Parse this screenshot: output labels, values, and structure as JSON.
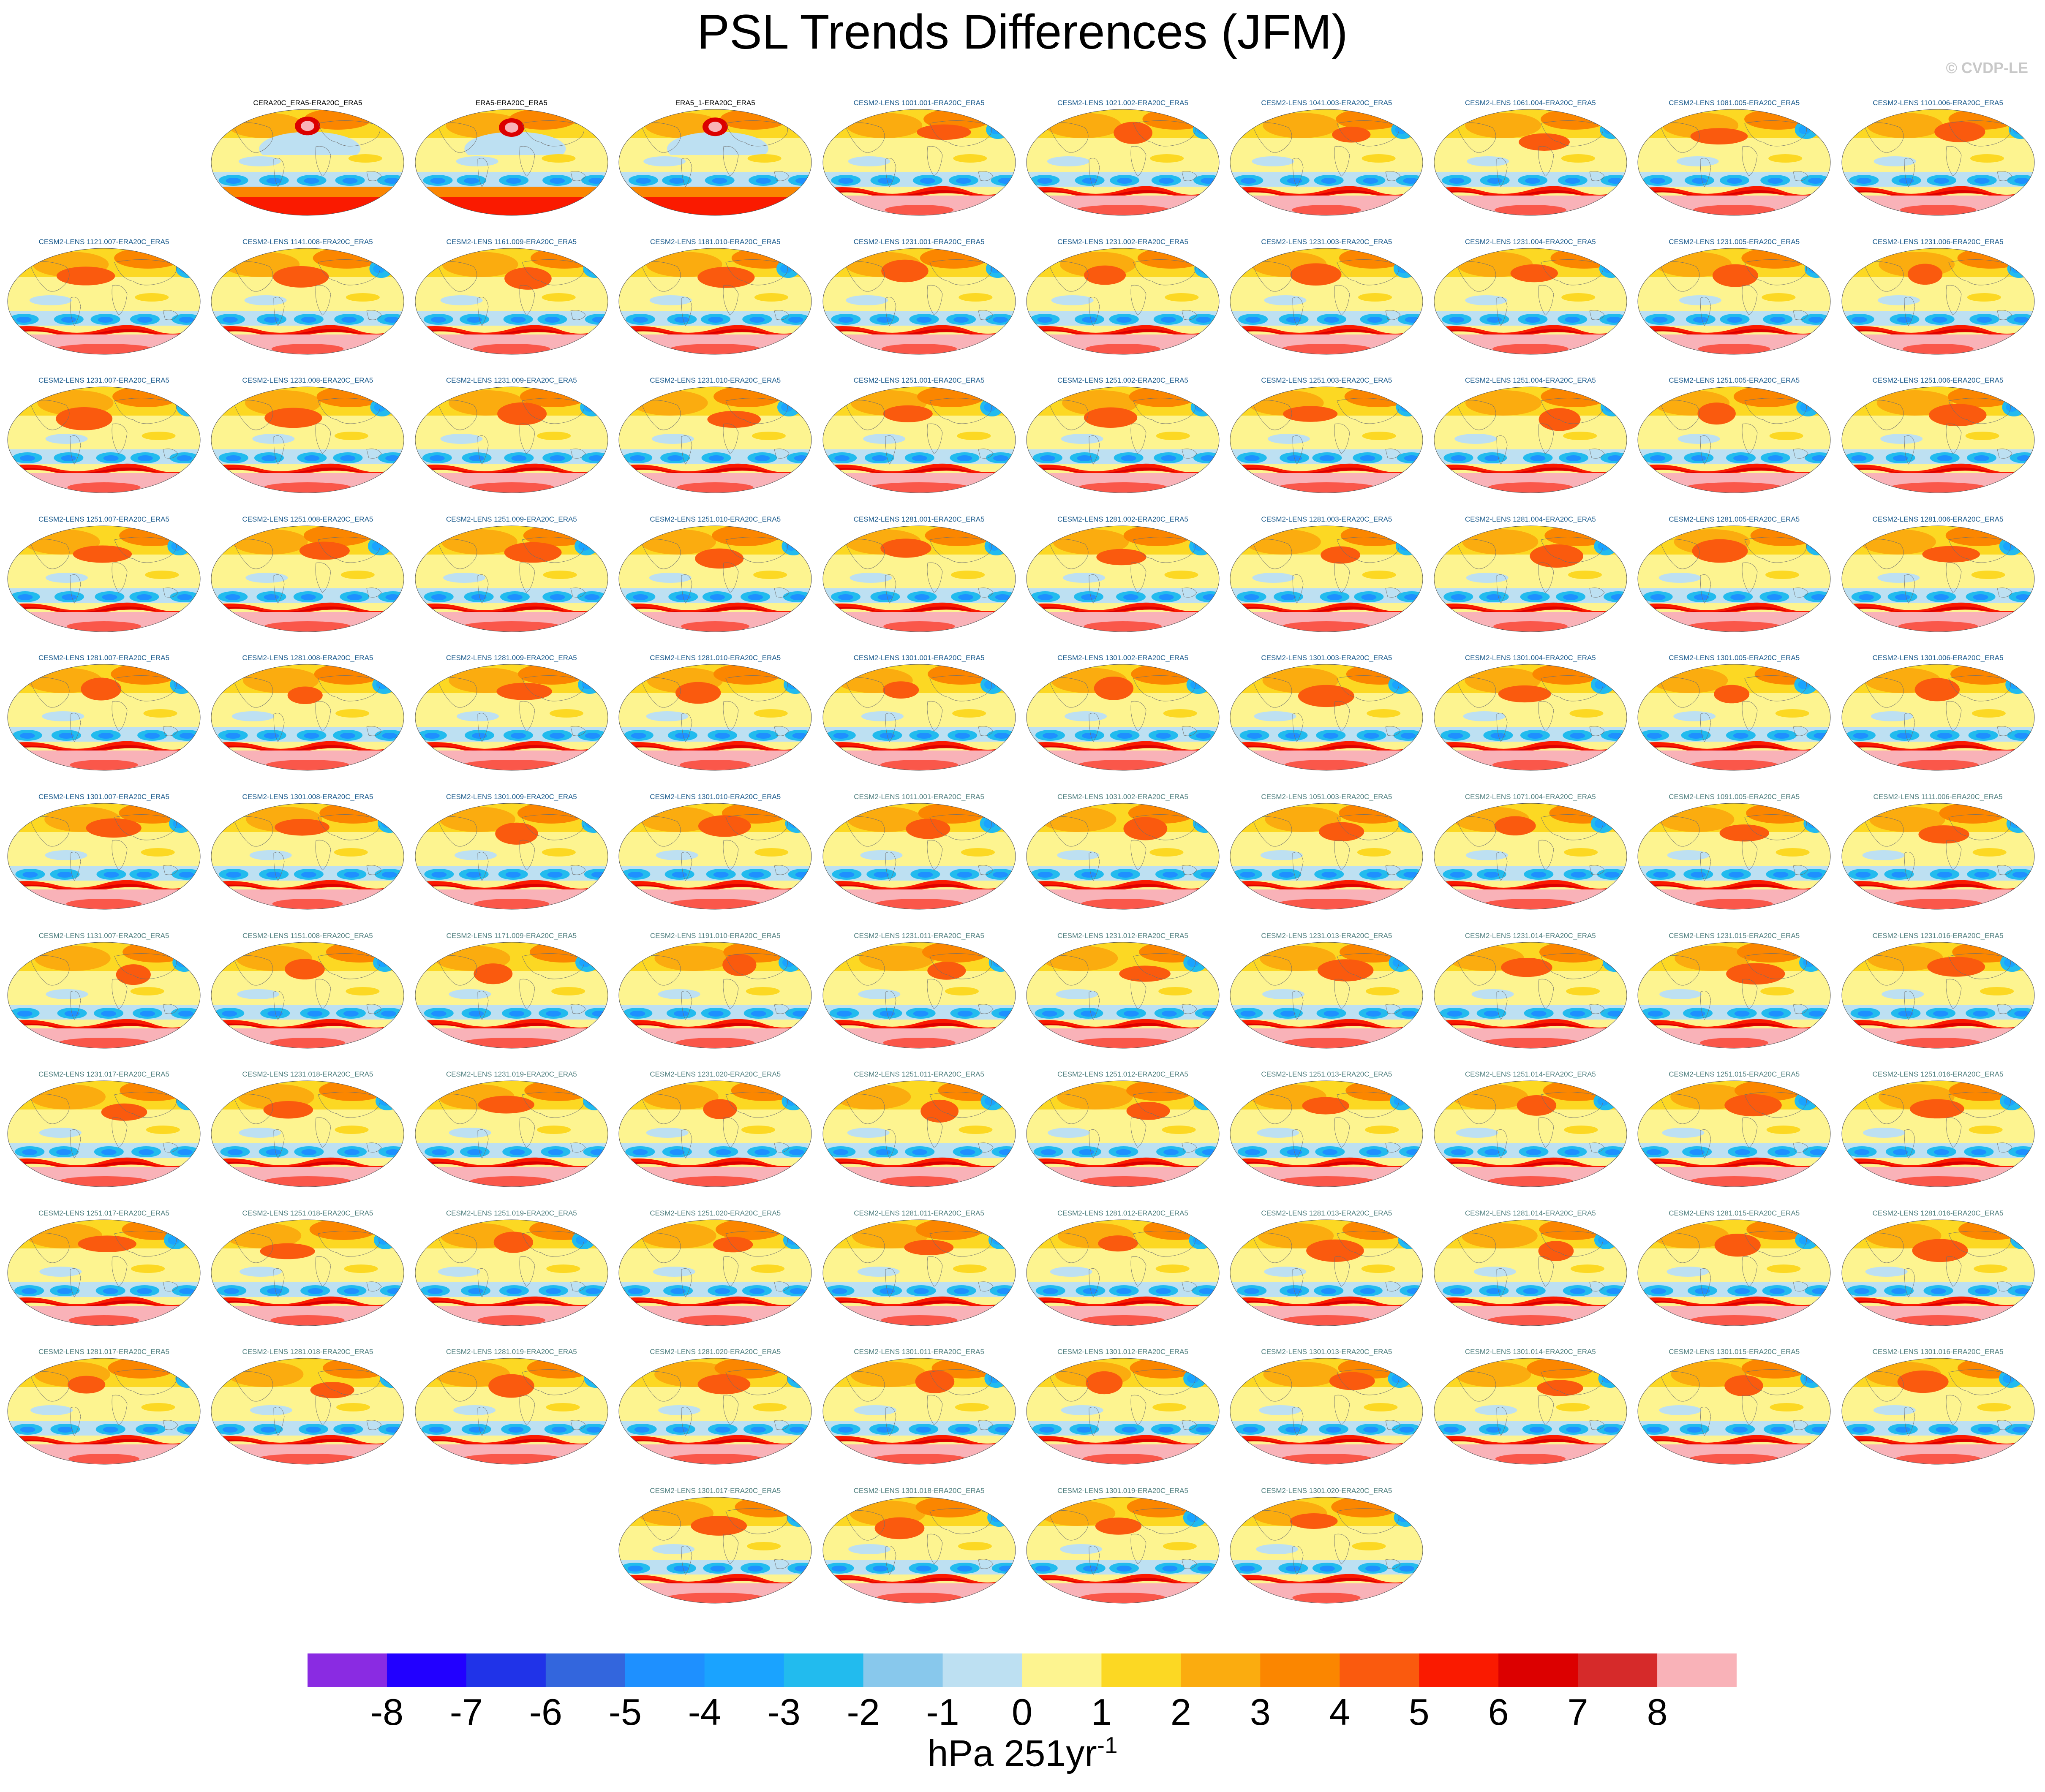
{
  "title": "PSL Trends Differences (JFM)",
  "copyright": "© CVDP-LE",
  "colors": {
    "label_obs": "#000000",
    "label_blue": "#1a5a8c",
    "label_teal": "#4d7d7d",
    "label_gray": "#5a7a7a"
  },
  "chart_data": {
    "type": "map-panel-grid",
    "projection": "Robinson",
    "variable": "PSL",
    "season": "JFM",
    "units": "hPa 251yr-1",
    "contour_levels": [
      -8,
      -7,
      -6,
      -5,
      -4,
      -3,
      -2,
      -1,
      0,
      1,
      2,
      3,
      4,
      5,
      6,
      7,
      8
    ],
    "colorbar_colors": [
      "#8a2be2",
      "#2200ff",
      "#2033e8",
      "#3366dd",
      "#1e90ff",
      "#1aa3ff",
      "#22bbee",
      "#88c8ec",
      "#bde0f2",
      "#fdf490",
      "#fcd823",
      "#fbac0f",
      "#fb8600",
      "#fa5a0e",
      "#fa1a00",
      "#dc0000",
      "#d62a2a",
      "#f9b2b8"
    ],
    "colorbar_labels": [
      "-8",
      "-7",
      "-6",
      "-5",
      "-4",
      "-3",
      "-2",
      "-1",
      "0",
      "1",
      "2",
      "3",
      "4",
      "5",
      "6",
      "7",
      "8"
    ],
    "units_label": {
      "base": "hPa 251yr",
      "exp": "-1"
    },
    "rows": [
      [
        {
          "label": "CERA20C_ERA5-ERA20C_ERA5",
          "group": "obs"
        },
        {
          "label": "ERA5-ERA20C_ERA5",
          "group": "obs"
        },
        {
          "label": "ERA5_1-ERA20C_ERA5",
          "group": "obs"
        },
        {
          "label": "CESM2-LENS 1001.001-ERA20C_ERA5",
          "group": "blue"
        },
        {
          "label": "CESM2-LENS 1021.002-ERA20C_ERA5",
          "group": "blue"
        },
        {
          "label": "CESM2-LENS 1041.003-ERA20C_ERA5",
          "group": "blue"
        },
        {
          "label": "CESM2-LENS 1061.004-ERA20C_ERA5",
          "group": "blue"
        },
        {
          "label": "CESM2-LENS 1081.005-ERA20C_ERA5",
          "group": "blue"
        },
        {
          "label": "CESM2-LENS 1101.006-ERA20C_ERA5",
          "group": "blue"
        }
      ],
      [
        {
          "label": "CESM2-LENS 1121.007-ERA20C_ERA5",
          "group": "blue"
        },
        {
          "label": "CESM2-LENS 1141.008-ERA20C_ERA5",
          "group": "blue"
        },
        {
          "label": "CESM2-LENS 1161.009-ERA20C_ERA5",
          "group": "blue"
        },
        {
          "label": "CESM2-LENS 1181.010-ERA20C_ERA5",
          "group": "blue"
        },
        {
          "label": "CESM2-LENS 1231.001-ERA20C_ERA5",
          "group": "blue"
        },
        {
          "label": "CESM2-LENS 1231.002-ERA20C_ERA5",
          "group": "blue"
        },
        {
          "label": "CESM2-LENS 1231.003-ERA20C_ERA5",
          "group": "blue"
        },
        {
          "label": "CESM2-LENS 1231.004-ERA20C_ERA5",
          "group": "blue"
        },
        {
          "label": "CESM2-LENS 1231.005-ERA20C_ERA5",
          "group": "blue"
        },
        {
          "label": "CESM2-LENS 1231.006-ERA20C_ERA5",
          "group": "blue"
        }
      ],
      [
        {
          "label": "CESM2-LENS 1231.007-ERA20C_ERA5",
          "group": "blue"
        },
        {
          "label": "CESM2-LENS 1231.008-ERA20C_ERA5",
          "group": "blue"
        },
        {
          "label": "CESM2-LENS 1231.009-ERA20C_ERA5",
          "group": "blue"
        },
        {
          "label": "CESM2-LENS 1231.010-ERA20C_ERA5",
          "group": "blue"
        },
        {
          "label": "CESM2-LENS 1251.001-ERA20C_ERA5",
          "group": "blue"
        },
        {
          "label": "CESM2-LENS 1251.002-ERA20C_ERA5",
          "group": "blue"
        },
        {
          "label": "CESM2-LENS 1251.003-ERA20C_ERA5",
          "group": "blue"
        },
        {
          "label": "CESM2-LENS 1251.004-ERA20C_ERA5",
          "group": "blue"
        },
        {
          "label": "CESM2-LENS 1251.005-ERA20C_ERA5",
          "group": "blue"
        },
        {
          "label": "CESM2-LENS 1251.006-ERA20C_ERA5",
          "group": "blue"
        }
      ],
      [
        {
          "label": "CESM2-LENS 1251.007-ERA20C_ERA5",
          "group": "blue"
        },
        {
          "label": "CESM2-LENS 1251.008-ERA20C_ERA5",
          "group": "blue"
        },
        {
          "label": "CESM2-LENS 1251.009-ERA20C_ERA5",
          "group": "blue"
        },
        {
          "label": "CESM2-LENS 1251.010-ERA20C_ERA5",
          "group": "blue"
        },
        {
          "label": "CESM2-LENS 1281.001-ERA20C_ERA5",
          "group": "blue"
        },
        {
          "label": "CESM2-LENS 1281.002-ERA20C_ERA5",
          "group": "blue"
        },
        {
          "label": "CESM2-LENS 1281.003-ERA20C_ERA5",
          "group": "blue"
        },
        {
          "label": "CESM2-LENS 1281.004-ERA20C_ERA5",
          "group": "blue"
        },
        {
          "label": "CESM2-LENS 1281.005-ERA20C_ERA5",
          "group": "blue"
        },
        {
          "label": "CESM2-LENS 1281.006-ERA20C_ERA5",
          "group": "blue"
        }
      ],
      [
        {
          "label": "CESM2-LENS 1281.007-ERA20C_ERA5",
          "group": "blue"
        },
        {
          "label": "CESM2-LENS 1281.008-ERA20C_ERA5",
          "group": "blue"
        },
        {
          "label": "CESM2-LENS 1281.009-ERA20C_ERA5",
          "group": "blue"
        },
        {
          "label": "CESM2-LENS 1281.010-ERA20C_ERA5",
          "group": "blue"
        },
        {
          "label": "CESM2-LENS 1301.001-ERA20C_ERA5",
          "group": "blue"
        },
        {
          "label": "CESM2-LENS 1301.002-ERA20C_ERA5",
          "group": "blue"
        },
        {
          "label": "CESM2-LENS 1301.003-ERA20C_ERA5",
          "group": "blue"
        },
        {
          "label": "CESM2-LENS 1301.004-ERA20C_ERA5",
          "group": "blue"
        },
        {
          "label": "CESM2-LENS 1301.005-ERA20C_ERA5",
          "group": "blue"
        },
        {
          "label": "CESM2-LENS 1301.006-ERA20C_ERA5",
          "group": "blue"
        }
      ],
      [
        {
          "label": "CESM2-LENS 1301.007-ERA20C_ERA5",
          "group": "blue"
        },
        {
          "label": "CESM2-LENS 1301.008-ERA20C_ERA5",
          "group": "blue"
        },
        {
          "label": "CESM2-LENS 1301.009-ERA20C_ERA5",
          "group": "blue"
        },
        {
          "label": "CESM2-LENS 1301.010-ERA20C_ERA5",
          "group": "blue"
        },
        {
          "label": "CESM2-LENS 1011.001-ERA20C_ERA5",
          "group": "teal"
        },
        {
          "label": "CESM2-LENS 1031.002-ERA20C_ERA5",
          "group": "teal"
        },
        {
          "label": "CESM2-LENS 1051.003-ERA20C_ERA5",
          "group": "teal"
        },
        {
          "label": "CESM2-LENS 1071.004-ERA20C_ERA5",
          "group": "teal"
        },
        {
          "label": "CESM2-LENS 1091.005-ERA20C_ERA5",
          "group": "teal"
        },
        {
          "label": "CESM2-LENS 1111.006-ERA20C_ERA5",
          "group": "teal"
        }
      ],
      [
        {
          "label": "CESM2-LENS 1131.007-ERA20C_ERA5",
          "group": "teal"
        },
        {
          "label": "CESM2-LENS 1151.008-ERA20C_ERA5",
          "group": "teal"
        },
        {
          "label": "CESM2-LENS 1171.009-ERA20C_ERA5",
          "group": "teal"
        },
        {
          "label": "CESM2-LENS 1191.010-ERA20C_ERA5",
          "group": "teal"
        },
        {
          "label": "CESM2-LENS 1231.011-ERA20C_ERA5",
          "group": "teal"
        },
        {
          "label": "CESM2-LENS 1231.012-ERA20C_ERA5",
          "group": "teal"
        },
        {
          "label": "CESM2-LENS 1231.013-ERA20C_ERA5",
          "group": "teal"
        },
        {
          "label": "CESM2-LENS 1231.014-ERA20C_ERA5",
          "group": "teal"
        },
        {
          "label": "CESM2-LENS 1231.015-ERA20C_ERA5",
          "group": "teal"
        },
        {
          "label": "CESM2-LENS 1231.016-ERA20C_ERA5",
          "group": "teal"
        }
      ],
      [
        {
          "label": "CESM2-LENS 1231.017-ERA20C_ERA5",
          "group": "teal"
        },
        {
          "label": "CESM2-LENS 1231.018-ERA20C_ERA5",
          "group": "teal"
        },
        {
          "label": "CESM2-LENS 1231.019-ERA20C_ERA5",
          "group": "teal"
        },
        {
          "label": "CESM2-LENS 1231.020-ERA20C_ERA5",
          "group": "teal"
        },
        {
          "label": "CESM2-LENS 1251.011-ERA20C_ERA5",
          "group": "teal"
        },
        {
          "label": "CESM2-LENS 1251.012-ERA20C_ERA5",
          "group": "teal"
        },
        {
          "label": "CESM2-LENS 1251.013-ERA20C_ERA5",
          "group": "teal"
        },
        {
          "label": "CESM2-LENS 1251.014-ERA20C_ERA5",
          "group": "teal"
        },
        {
          "label": "CESM2-LENS 1251.015-ERA20C_ERA5",
          "group": "teal"
        },
        {
          "label": "CESM2-LENS 1251.016-ERA20C_ERA5",
          "group": "teal"
        }
      ],
      [
        {
          "label": "CESM2-LENS 1251.017-ERA20C_ERA5",
          "group": "teal"
        },
        {
          "label": "CESM2-LENS 1251.018-ERA20C_ERA5",
          "group": "teal"
        },
        {
          "label": "CESM2-LENS 1251.019-ERA20C_ERA5",
          "group": "teal"
        },
        {
          "label": "CESM2-LENS 1251.020-ERA20C_ERA5",
          "group": "teal"
        },
        {
          "label": "CESM2-LENS 1281.011-ERA20C_ERA5",
          "group": "teal"
        },
        {
          "label": "CESM2-LENS 1281.012-ERA20C_ERA5",
          "group": "teal"
        },
        {
          "label": "CESM2-LENS 1281.013-ERA20C_ERA5",
          "group": "teal"
        },
        {
          "label": "CESM2-LENS 1281.014-ERA20C_ERA5",
          "group": "teal"
        },
        {
          "label": "CESM2-LENS 1281.015-ERA20C_ERA5",
          "group": "teal"
        },
        {
          "label": "CESM2-LENS 1281.016-ERA20C_ERA5",
          "group": "teal"
        }
      ],
      [
        {
          "label": "CESM2-LENS 1281.017-ERA20C_ERA5",
          "group": "teal"
        },
        {
          "label": "CESM2-LENS 1281.018-ERA20C_ERA5",
          "group": "teal"
        },
        {
          "label": "CESM2-LENS 1281.019-ERA20C_ERA5",
          "group": "teal"
        },
        {
          "label": "CESM2-LENS 1281.020-ERA20C_ERA5",
          "group": "teal"
        },
        {
          "label": "CESM2-LENS 1301.011-ERA20C_ERA5",
          "group": "teal"
        },
        {
          "label": "CESM2-LENS 1301.012-ERA20C_ERA5",
          "group": "teal"
        },
        {
          "label": "CESM2-LENS 1301.013-ERA20C_ERA5",
          "group": "teal"
        },
        {
          "label": "CESM2-LENS 1301.014-ERA20C_ERA5",
          "group": "teal"
        },
        {
          "label": "CESM2-LENS 1301.015-ERA20C_ERA5",
          "group": "teal"
        },
        {
          "label": "CESM2-LENS 1301.016-ERA20C_ERA5",
          "group": "teal"
        }
      ],
      [
        {
          "label": "CESM2-LENS 1301.017-ERA20C_ERA5",
          "group": "teal"
        },
        {
          "label": "CESM2-LENS 1301.018-ERA20C_ERA5",
          "group": "teal"
        },
        {
          "label": "CESM2-LENS 1301.019-ERA20C_ERA5",
          "group": "teal"
        },
        {
          "label": "CESM2-LENS 1301.020-ERA20C_ERA5",
          "group": "teal"
        }
      ]
    ]
  }
}
